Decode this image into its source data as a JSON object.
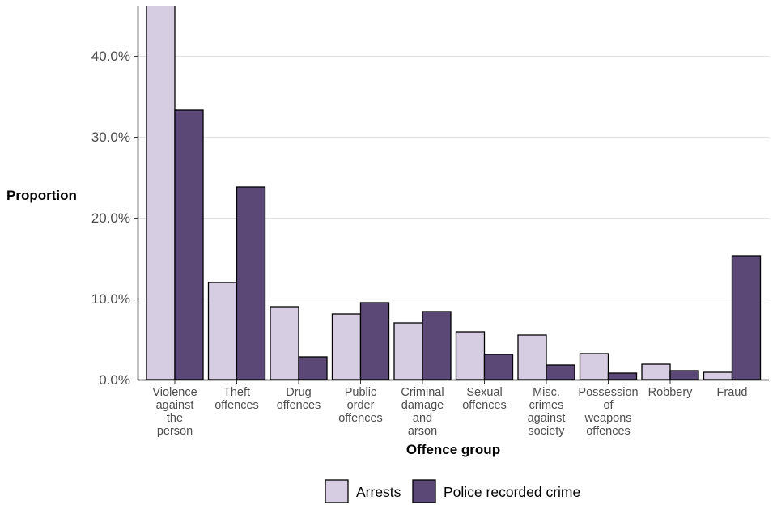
{
  "chart_data": {
    "type": "bar",
    "title": "",
    "xlabel": "Offence group",
    "ylabel": "Proportion",
    "ylim": [
      0,
      46
    ],
    "yticks": [
      0,
      10,
      20,
      30,
      40
    ],
    "ytick_labels": [
      "0.0%",
      "10.0%",
      "20.0%",
      "30.0%",
      "40.0%"
    ],
    "grid": "horizontal",
    "legend_position": "bottom",
    "categories": [
      [
        "Violence",
        "against",
        "the",
        "person"
      ],
      [
        "Theft",
        "offences"
      ],
      [
        "Drug",
        "offences"
      ],
      [
        "Public",
        "order",
        "offences"
      ],
      [
        "Criminal",
        "damage",
        "and",
        "arson"
      ],
      [
        "Sexual",
        "offences"
      ],
      [
        "Misc.",
        "crimes",
        "against",
        "society"
      ],
      [
        "Possession",
        "of",
        "weapons",
        "offences"
      ],
      [
        "Robbery"
      ],
      [
        "Fraud"
      ]
    ],
    "series": [
      {
        "name": "Arrests",
        "color": "#d6cde2",
        "values": [
          47.0,
          12.0,
          9.0,
          8.1,
          7.0,
          5.9,
          5.5,
          3.2,
          1.9,
          0.9
        ]
      },
      {
        "name": "Police recorded crime",
        "color": "#5c4876",
        "values": [
          33.3,
          23.8,
          2.8,
          9.5,
          8.4,
          3.1,
          1.8,
          0.8,
          1.1,
          15.3
        ]
      }
    ]
  }
}
